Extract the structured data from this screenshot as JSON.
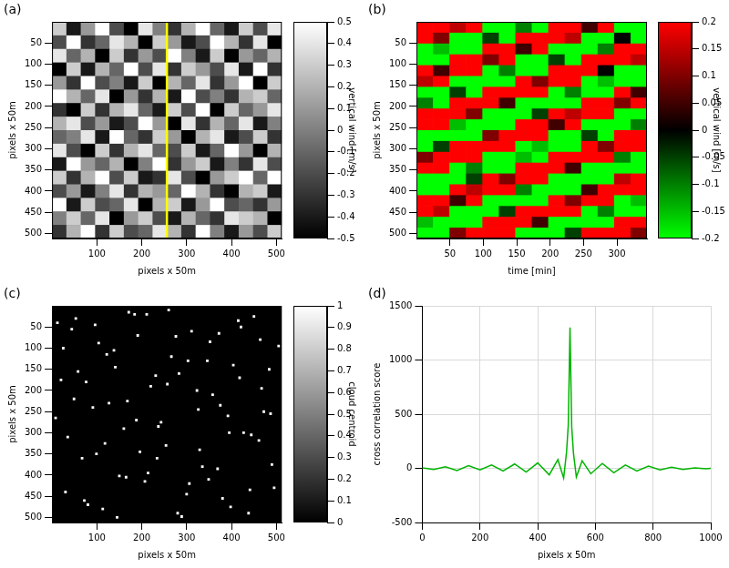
{
  "chart_data": [
    {
      "panel": "(a)",
      "type": "heatmap",
      "xlabel": "pixels x 50m",
      "ylabel": "pixels x 50m",
      "xlim": [
        0,
        512
      ],
      "ylim": [
        512,
        0
      ],
      "xticks": [
        100,
        200,
        300,
        400,
        500
      ],
      "yticks": [
        50,
        100,
        150,
        200,
        250,
        300,
        350,
        400,
        450,
        500
      ],
      "grid": false,
      "highlight_x": 256,
      "color": "#ffff00",
      "cells": [
        [
          0.3,
          -0.4,
          0.1,
          0.5,
          -0.2,
          -0.5,
          0.4,
          0,
          -0.3,
          0.2,
          0.5,
          -0.1,
          -0.4,
          0.3,
          -0.2,
          0.4
        ],
        [
          -0.2,
          0.5,
          -0.3,
          -0.1,
          0.4,
          0.2,
          -0.5,
          0.3,
          0.1,
          -0.4,
          -0.2,
          0.5,
          0.2,
          -0.3,
          0.4,
          -0.5
        ],
        [
          0.4,
          -0.1,
          0.2,
          -0.5,
          0.3,
          -0.3,
          0.1,
          -0.2,
          0.5,
          0,
          -0.4,
          0.3,
          -0.5,
          0.1,
          -0.1,
          0.2
        ],
        [
          -0.5,
          0.3,
          -0.4,
          0.2,
          -0.1,
          0.5,
          -0.2,
          0.4,
          -0.3,
          0.3,
          0.1,
          -0.2,
          0.4,
          -0.4,
          0.5,
          -0.3
        ],
        [
          0.1,
          -0.3,
          0.5,
          -0.2,
          0,
          -0.4,
          0.3,
          -0.5,
          0.2,
          -0.1,
          0.4,
          -0.3,
          0.1,
          0.5,
          -0.5,
          0.3
        ],
        [
          0.5,
          0.2,
          -0.1,
          0.4,
          -0.5,
          0.1,
          -0.3,
          0.2,
          -0.4,
          0.5,
          -0.2,
          0,
          -0.3,
          0.2,
          0.3,
          -0.1
        ],
        [
          -0.3,
          -0.5,
          0.3,
          -0.3,
          0.2,
          0.4,
          -0.1,
          -0.4,
          0.3,
          -0.2,
          0.5,
          -0.5,
          0.3,
          -0.1,
          0.1,
          0.4
        ],
        [
          0.2,
          0.4,
          -0.2,
          0.1,
          -0.4,
          -0.2,
          0.5,
          0.1,
          -0.5,
          0.4,
          -0.3,
          0.2,
          -0.1,
          0.4,
          -0.4,
          0
        ],
        [
          -0.1,
          0,
          0.4,
          -0.4,
          0.5,
          -0.1,
          -0.3,
          0.3,
          0.1,
          -0.5,
          0.2,
          0.4,
          -0.4,
          -0.2,
          0.3,
          -0.3
        ],
        [
          0.4,
          -0.2,
          -0.5,
          0.3,
          -0.3,
          0.2,
          0.4,
          -0.1,
          -0.2,
          0.3,
          -0.4,
          -0.1,
          0.5,
          0.1,
          -0.5,
          0.2
        ],
        [
          -0.4,
          0.5,
          0.1,
          -0.1,
          0.2,
          -0.5,
          0,
          0.5,
          -0.3,
          0.1,
          0.3,
          -0.4,
          0,
          -0.3,
          0.4,
          -0.2
        ],
        [
          0.3,
          -0.3,
          0.2,
          0.5,
          -0.2,
          0.3,
          -0.4,
          -0.3,
          0.4,
          -0.2,
          -0.5,
          0.1,
          0.3,
          0.5,
          -0.1,
          0.5
        ],
        [
          -0.2,
          0.1,
          -0.4,
          0,
          0.4,
          -0.3,
          0.2,
          0.1,
          -0.1,
          0.5,
          0.2,
          -0.3,
          -0.5,
          0.2,
          0.3,
          -0.4
        ],
        [
          0.5,
          -0.4,
          0.3,
          -0.2,
          -0.1,
          0.4,
          -0.5,
          0.2,
          0.3,
          -0.4,
          0.1,
          0.5,
          -0.2,
          -0.1,
          -0.3,
          0.1
        ],
        [
          0,
          0.3,
          -0.1,
          0.4,
          -0.5,
          0.1,
          0.3,
          -0.2,
          -0.4,
          0.2,
          -0.1,
          -0.3,
          0.4,
          0.3,
          0.2,
          -0.5
        ],
        [
          -0.3,
          0.2,
          0.5,
          -0.3,
          0.3,
          -0.2,
          -0.1,
          0.4,
          0.2,
          -0.3,
          0.5,
          0,
          -0.4,
          0.1,
          -0.2,
          0.3
        ]
      ],
      "colorbar": {
        "label": "vertical wind [m/s]",
        "lim": [
          -0.5,
          0.5
        ],
        "ticks": [
          -0.5,
          -0.4,
          -0.3,
          -0.2,
          -0.1,
          0,
          0.1,
          0.2,
          0.3,
          0.4,
          0.5
        ],
        "colors": [
          "#000000",
          "#ffffff"
        ]
      }
    },
    {
      "panel": "(b)",
      "type": "heatmap",
      "xlabel": "time [min]",
      "ylabel": "pixels x 50m",
      "xlim": [
        0,
        345
      ],
      "ylim": [
        512,
        0
      ],
      "xticks": [
        50,
        100,
        150,
        200,
        250,
        300
      ],
      "yticks": [
        50,
        100,
        150,
        200,
        250,
        300,
        350,
        400,
        450,
        500
      ],
      "grid": false,
      "cells": [
        [
          0.2,
          0.2,
          0.15,
          0.2,
          -0.2,
          -0.2,
          -0.1,
          -0.2,
          0.2,
          0.2,
          0.05,
          0.2,
          -0.2,
          -0.2
        ],
        [
          0.2,
          0.1,
          -0.2,
          -0.2,
          -0.05,
          -0.2,
          0.2,
          0.2,
          0.2,
          0.15,
          -0.2,
          -0.2,
          0,
          -0.2
        ],
        [
          -0.2,
          -0.15,
          -0.2,
          -0.2,
          0.2,
          0.2,
          0.05,
          0.2,
          -0.2,
          -0.2,
          -0.2,
          -0.1,
          0.2,
          0.2
        ],
        [
          -0.2,
          -0.2,
          0.2,
          0.2,
          0.1,
          0.2,
          -0.2,
          -0.2,
          -0.05,
          -0.2,
          0.2,
          0.2,
          0.2,
          0.15
        ],
        [
          0.2,
          0.05,
          0.2,
          0.2,
          -0.2,
          -0.1,
          -0.2,
          -0.2,
          0.2,
          0.2,
          0.2,
          0,
          -0.2,
          -0.2
        ],
        [
          0.15,
          0.2,
          -0.2,
          -0.2,
          -0.2,
          -0.2,
          0.2,
          0.1,
          0.2,
          0.2,
          -0.2,
          -0.15,
          -0.2,
          -0.2
        ],
        [
          -0.2,
          -0.2,
          -0.05,
          -0.2,
          0.2,
          0.2,
          0.2,
          0.2,
          -0.2,
          -0.1,
          -0.2,
          -0.2,
          0.2,
          0.05
        ],
        [
          -0.1,
          -0.2,
          0.2,
          0.2,
          0.2,
          0.05,
          -0.2,
          -0.2,
          -0.2,
          -0.2,
          0.2,
          0.2,
          0.1,
          0.2
        ],
        [
          0.2,
          0.2,
          0.2,
          0.1,
          -0.2,
          -0.2,
          -0.2,
          -0.05,
          0.2,
          0.15,
          0.2,
          0.2,
          -0.2,
          -0.2
        ],
        [
          0.2,
          0.2,
          -0.15,
          -0.2,
          -0.2,
          -0.2,
          0.2,
          0.2,
          0.05,
          0.2,
          -0.2,
          -0.2,
          -0.2,
          -0.1
        ],
        [
          -0.2,
          -0.2,
          -0.2,
          -0.2,
          0.1,
          0.2,
          0.2,
          0.2,
          -0.2,
          -0.2,
          -0.05,
          -0.2,
          0.2,
          0.2
        ],
        [
          -0.2,
          -0.05,
          0.2,
          0.2,
          0.2,
          0.2,
          -0.2,
          -0.15,
          -0.2,
          -0.2,
          0.2,
          0.1,
          0.2,
          0.2
        ],
        [
          0.1,
          0.2,
          0.2,
          0.2,
          -0.2,
          -0.2,
          -0.15,
          -0.2,
          0.2,
          0.2,
          0.2,
          0.2,
          -0.1,
          -0.2
        ],
        [
          0.2,
          0.2,
          -0.2,
          -0.1,
          -0.2,
          -0.2,
          0.2,
          0.2,
          0.2,
          0.05,
          -0.2,
          -0.2,
          -0.2,
          -0.2
        ],
        [
          -0.2,
          -0.2,
          -0.2,
          -0.05,
          0.2,
          0.1,
          0.2,
          0.2,
          -0.2,
          -0.2,
          -0.2,
          -0.2,
          0.15,
          0.2
        ],
        [
          -0.2,
          -0.2,
          0.2,
          0.15,
          0.2,
          0.2,
          -0.1,
          -0.2,
          -0.2,
          -0.2,
          0.05,
          0.2,
          0.2,
          0.2
        ],
        [
          0.2,
          0.2,
          0.05,
          0.2,
          -0.2,
          -0.2,
          -0.2,
          -0.2,
          0.2,
          0.1,
          0.2,
          0.2,
          -0.2,
          -0.15
        ],
        [
          0.2,
          0.15,
          -0.2,
          -0.2,
          -0.2,
          -0.05,
          0.2,
          0.2,
          0.2,
          0.2,
          -0.2,
          -0.1,
          -0.2,
          -0.2
        ],
        [
          -0.15,
          -0.2,
          -0.2,
          -0.2,
          0.2,
          0.2,
          0.2,
          0.05,
          -0.2,
          -0.2,
          -0.2,
          -0.2,
          0.2,
          0.2
        ],
        [
          -0.2,
          -0.2,
          0.1,
          0.2,
          0.2,
          0.2,
          -0.2,
          -0.2,
          -0.2,
          -0.05,
          0.2,
          0.2,
          0.2,
          0.1
        ]
      ],
      "colorbar": {
        "label": "vertical wind [m/s]",
        "lim": [
          -0.2,
          0.2
        ],
        "ticks": [
          -0.2,
          -0.15,
          -0.1,
          -0.05,
          0,
          0.05,
          0.1,
          0.15,
          0.2
        ],
        "colors": [
          "#00ff00",
          "#000000",
          "#ff0000"
        ]
      }
    },
    {
      "panel": "(c)",
      "type": "scatter",
      "xlabel": "pixels x 50m",
      "ylabel": "pixels x 50m",
      "xlim": [
        0,
        512
      ],
      "ylim": [
        512,
        0
      ],
      "xticks": [
        100,
        200,
        300,
        400,
        500
      ],
      "yticks": [
        50,
        100,
        150,
        200,
        250,
        300,
        350,
        400,
        450,
        500
      ],
      "grid": false,
      "color": "#ffffff",
      "x": [
        12,
        35,
        58,
        80,
        104,
        127,
        150,
        171,
        196,
        220,
        243,
        266,
        289,
        311,
        335,
        358,
        380,
        404,
        427,
        450,
        472,
        495,
        20,
        44,
        67,
        91,
        113,
        138,
        160,
        184,
        207,
        231,
        254,
        276,
        300,
        323,
        346,
        369,
        392,
        415,
        438,
        461,
        484,
        505,
        8,
        30,
        53,
        76,
        99,
        122,
        145,
        168,
        191,
        214,
        237,
        260,
        283,
        306,
        329,
        352,
        375,
        398,
        421,
        444,
        467,
        490,
        25,
        49,
        72,
        96,
        118,
        141,
        165,
        188,
        211,
        234,
        257,
        280,
        303,
        326,
        349,
        372,
        395,
        418,
        441,
        464,
        487
      ],
      "y": [
        40,
        310,
        155,
        470,
        88,
        230,
        402,
        15,
        345,
        190,
        275,
        120,
        498,
        60,
        380,
        210,
        455,
        140,
        300,
        25,
        250,
        430,
        175,
        55,
        360,
        240,
        480,
        105,
        290,
        20,
        415,
        165,
        330,
        72,
        445,
        200,
        130,
        385,
        260,
        35,
        490,
        318,
        150,
        95,
        265,
        440,
        30,
        180,
        350,
        115,
        500,
        225,
        70,
        395,
        285,
        10,
        160,
        420,
        340,
        85,
        235,
        475,
        50,
        305,
        195,
        375,
        100,
        220,
        460,
        45,
        325,
        145,
        405,
        270,
        20,
        360,
        185,
        490,
        130,
        245,
        410,
        65,
        300,
        170,
        435,
        80,
        255
      ],
      "colorbar": {
        "label": "cloud centroid",
        "lim": [
          0,
          1
        ],
        "ticks": [
          0,
          0.1,
          0.2,
          0.3,
          0.4,
          0.5,
          0.6,
          0.7,
          0.8,
          0.9,
          1
        ],
        "colors": [
          "#000000",
          "#ffffff"
        ]
      }
    },
    {
      "panel": "(d)",
      "type": "line",
      "xlabel": "pixels x 50m",
      "ylabel": "cross correlation score",
      "xlim": [
        0,
        1000
      ],
      "ylim": [
        -500,
        1500
      ],
      "xticks": [
        0,
        200,
        400,
        600,
        800,
        1000
      ],
      "yticks": [
        -500,
        0,
        500,
        1000,
        1500
      ],
      "grid": true,
      "color": "#00b400",
      "x": [
        0,
        40,
        80,
        120,
        160,
        200,
        240,
        280,
        320,
        360,
        400,
        440,
        470,
        490,
        500,
        506,
        512,
        518,
        524,
        534,
        554,
        584,
        624,
        664,
        704,
        744,
        784,
        824,
        864,
        904,
        944,
        984,
        1000
      ],
      "values": [
        5,
        -10,
        15,
        -20,
        25,
        -15,
        30,
        -25,
        40,
        -35,
        50,
        -60,
        80,
        -90,
        150,
        400,
        1300,
        380,
        140,
        -80,
        70,
        -50,
        45,
        -40,
        30,
        -25,
        20,
        -15,
        10,
        -10,
        5,
        -5,
        0
      ]
    }
  ]
}
